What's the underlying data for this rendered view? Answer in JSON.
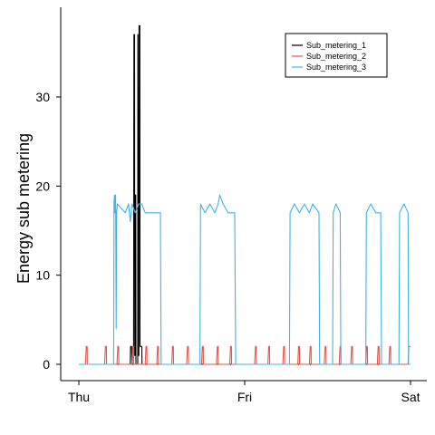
{
  "chart_data": {
    "type": "line",
    "ylabel": "Energy sub metering",
    "xlabel": "",
    "title": "",
    "x_ticks": [
      "Thu",
      "Fri",
      "Sat"
    ],
    "x_range_days": [
      0,
      2
    ],
    "ylim": [
      -2,
      40
    ],
    "y_ticks": [
      0,
      10,
      20,
      30
    ],
    "grid": false,
    "legend": {
      "position": "top-right",
      "entries": [
        "Sub_metering_1",
        "Sub_metering_2",
        "Sub_metering_3"
      ]
    },
    "series": [
      {
        "name": "Sub_metering_1",
        "color": "#000000",
        "points": [
          [
            0,
            0
          ],
          [
            0.31,
            0
          ],
          [
            0.312,
            2
          ],
          [
            0.318,
            2
          ],
          [
            0.32,
            0
          ],
          [
            0.33,
            0
          ],
          [
            0.332,
            37
          ],
          [
            0.336,
            37
          ],
          [
            0.337,
            1
          ],
          [
            0.34,
            1
          ],
          [
            0.341,
            19
          ],
          [
            0.343,
            19
          ],
          [
            0.344,
            0
          ],
          [
            0.355,
            0
          ],
          [
            0.356,
            37
          ],
          [
            0.359,
            1
          ],
          [
            0.362,
            1
          ],
          [
            0.363,
            38
          ],
          [
            0.368,
            38
          ],
          [
            0.369,
            2
          ],
          [
            0.38,
            2
          ],
          [
            0.381,
            0
          ],
          [
            2,
            0
          ]
        ]
      },
      {
        "name": "Sub_metering_2",
        "color": "#E8544A",
        "points": [
          [
            0,
            0
          ],
          [
            0.04,
            0
          ],
          [
            0.045,
            2
          ],
          [
            0.05,
            2
          ],
          [
            0.051,
            0
          ],
          [
            0.155,
            0
          ],
          [
            0.16,
            2
          ],
          [
            0.166,
            2
          ],
          [
            0.167,
            0
          ],
          [
            0.23,
            0
          ],
          [
            0.235,
            2
          ],
          [
            0.24,
            2
          ],
          [
            0.241,
            0
          ],
          [
            0.32,
            0
          ],
          [
            0.325,
            2
          ],
          [
            0.33,
            2
          ],
          [
            0.331,
            0
          ],
          [
            0.4,
            0
          ],
          [
            0.405,
            2
          ],
          [
            0.41,
            2
          ],
          [
            0.411,
            0
          ],
          [
            0.47,
            0
          ],
          [
            0.475,
            2
          ],
          [
            0.48,
            2
          ],
          [
            0.481,
            0
          ],
          [
            0.56,
            0
          ],
          [
            0.565,
            2
          ],
          [
            0.57,
            2
          ],
          [
            0.571,
            0
          ],
          [
            0.65,
            0
          ],
          [
            0.655,
            2
          ],
          [
            0.66,
            2
          ],
          [
            0.661,
            0
          ],
          [
            0.74,
            0
          ],
          [
            0.745,
            2
          ],
          [
            0.75,
            2
          ],
          [
            0.751,
            0
          ],
          [
            0.83,
            0
          ],
          [
            0.835,
            2
          ],
          [
            0.84,
            2
          ],
          [
            0.841,
            0
          ],
          [
            0.91,
            0
          ],
          [
            0.915,
            2
          ],
          [
            0.92,
            2
          ],
          [
            0.921,
            0
          ],
          [
            1.06,
            0
          ],
          [
            1.065,
            2
          ],
          [
            1.07,
            2
          ],
          [
            1.071,
            0
          ],
          [
            1.14,
            0
          ],
          [
            1.145,
            2
          ],
          [
            1.15,
            2
          ],
          [
            1.151,
            0
          ],
          [
            1.23,
            0
          ],
          [
            1.235,
            2
          ],
          [
            1.24,
            2
          ],
          [
            1.241,
            0
          ],
          [
            1.32,
            0
          ],
          [
            1.325,
            2
          ],
          [
            1.33,
            2
          ],
          [
            1.331,
            0
          ],
          [
            1.39,
            0
          ],
          [
            1.395,
            2
          ],
          [
            1.4,
            2
          ],
          [
            1.401,
            0
          ],
          [
            1.48,
            0
          ],
          [
            1.485,
            2
          ],
          [
            1.49,
            2
          ],
          [
            1.491,
            0
          ],
          [
            1.57,
            0
          ],
          [
            1.575,
            2
          ],
          [
            1.58,
            2
          ],
          [
            1.581,
            0
          ],
          [
            1.64,
            0
          ],
          [
            1.645,
            2
          ],
          [
            1.65,
            2
          ],
          [
            1.651,
            0
          ],
          [
            1.73,
            0
          ],
          [
            1.735,
            2
          ],
          [
            1.74,
            2
          ],
          [
            1.741,
            0
          ],
          [
            1.8,
            0
          ],
          [
            1.805,
            2
          ],
          [
            1.81,
            2
          ],
          [
            1.811,
            0
          ],
          [
            1.87,
            0
          ],
          [
            1.875,
            2
          ],
          [
            1.88,
            2
          ],
          [
            1.881,
            0
          ],
          [
            1.985,
            0
          ],
          [
            1.99,
            2
          ],
          [
            2,
            2
          ]
        ]
      },
      {
        "name": "Sub_metering_3",
        "color": "#3EB4E8",
        "points": [
          [
            0,
            0
          ],
          [
            0.21,
            0
          ],
          [
            0.212,
            18
          ],
          [
            0.215,
            19
          ],
          [
            0.218,
            17
          ],
          [
            0.222,
            19
          ],
          [
            0.225,
            4
          ],
          [
            0.228,
            17
          ],
          [
            0.232,
            18
          ],
          [
            0.28,
            17
          ],
          [
            0.3,
            18
          ],
          [
            0.31,
            16
          ],
          [
            0.32,
            18
          ],
          [
            0.34,
            17
          ],
          [
            0.36,
            18
          ],
          [
            0.38,
            18
          ],
          [
            0.4,
            17
          ],
          [
            0.492,
            17
          ],
          [
            0.496,
            0
          ],
          [
            0.73,
            0
          ],
          [
            0.734,
            18
          ],
          [
            0.76,
            17
          ],
          [
            0.79,
            18
          ],
          [
            0.82,
            17
          ],
          [
            0.84,
            18
          ],
          [
            0.85,
            19
          ],
          [
            0.87,
            18
          ],
          [
            0.9,
            17
          ],
          [
            0.94,
            17
          ],
          [
            0.946,
            0
          ],
          [
            1.27,
            0
          ],
          [
            1.274,
            17
          ],
          [
            1.3,
            18
          ],
          [
            1.33,
            17
          ],
          [
            1.36,
            18
          ],
          [
            1.39,
            17
          ],
          [
            1.41,
            18
          ],
          [
            1.448,
            17
          ],
          [
            1.452,
            0
          ],
          [
            1.53,
            0
          ],
          [
            1.534,
            17
          ],
          [
            1.55,
            18
          ],
          [
            1.576,
            17
          ],
          [
            1.58,
            0
          ],
          [
            1.73,
            0
          ],
          [
            1.734,
            17
          ],
          [
            1.76,
            18
          ],
          [
            1.79,
            17
          ],
          [
            1.82,
            17
          ],
          [
            1.825,
            0
          ],
          [
            1.93,
            0
          ],
          [
            1.934,
            17
          ],
          [
            1.96,
            18
          ],
          [
            1.985,
            17
          ],
          [
            1.988,
            0
          ],
          [
            2,
            0
          ]
        ]
      }
    ]
  }
}
